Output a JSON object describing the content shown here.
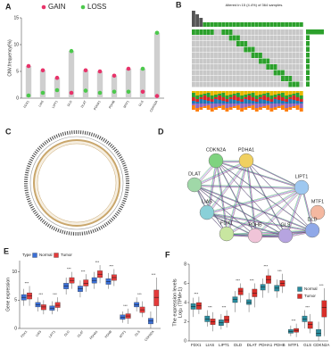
{
  "panel_labels": [
    "A",
    "B",
    "C",
    "D",
    "E",
    "F"
  ],
  "oncoplot": {
    "title": "Altered in 15 (4.4%) of 364 samples."
  },
  "network": {
    "nodes": [
      "CDKN2A",
      "PDHA1",
      "LIPT1",
      "MTF1",
      "DLD",
      "GLS",
      "PDHB",
      "FDX1",
      "LIAS",
      "DLAT"
    ]
  },
  "chart_data": [
    {
      "type": "dot_bar",
      "ylabel": "CNV.frequency(%)",
      "categories": [
        "FDX1",
        "LIAS",
        "LIPT1",
        "DLD",
        "DLAT",
        "PDHA1",
        "PDHB",
        "MTF1",
        "GLS",
        "CDKN2A"
      ],
      "series": [
        {
          "name": "GAIN",
          "color": "#e8336a",
          "values": [
            6.0,
            5.2,
            3.8,
            1.0,
            5.2,
            5.0,
            4.2,
            5.5,
            1.2,
            0.4
          ]
        },
        {
          "name": "LOSS",
          "color": "#4cc94c",
          "values": [
            0.5,
            1.0,
            1.5,
            8.8,
            1.4,
            1.0,
            1.2,
            1.2,
            5.5,
            12.2
          ]
        }
      ],
      "ylim": [
        0,
        15
      ],
      "yticks": [
        0,
        5,
        10,
        15
      ],
      "bar_color": "#cfcfcf",
      "legend": "top"
    },
    {
      "type": "box",
      "ylabel": "Gene expression",
      "legend_title": "Type",
      "legend": "top-left",
      "categories": [
        "FDX1",
        "LIAS",
        "LIPT1",
        "DLD",
        "DLAT",
        "PDHA1",
        "PDHB",
        "MTF1",
        "GLS",
        "CDKN2A"
      ],
      "annotations": [
        "***",
        "***",
        "***",
        "***",
        "***",
        "***",
        "***",
        "***",
        "***",
        "***"
      ],
      "series": [
        {
          "name": "Normal",
          "color": "#3b6fd6",
          "boxes": [
            [
              4,
              5,
              5.5,
              6,
              7
            ],
            [
              3,
              3.8,
              4.2,
              4.6,
              5.5
            ],
            [
              2.5,
              3.2,
              3.6,
              4,
              4.8
            ],
            [
              6,
              7,
              7.5,
              8,
              9
            ],
            [
              5.5,
              6.5,
              7,
              7.5,
              8.5
            ],
            [
              7,
              8,
              8.5,
              9,
              10
            ],
            [
              7,
              7.8,
              8.3,
              8.8,
              9.8
            ],
            [
              1,
              1.6,
              2,
              2.4,
              3
            ],
            [
              3,
              3.8,
              4.2,
              4.6,
              5.5
            ],
            [
              0,
              0.8,
              1.3,
              1.8,
              3
            ]
          ]
        },
        {
          "name": "Tumor",
          "color": "#e43b3b",
          "boxes": [
            [
              4,
              5.2,
              5.8,
              6.3,
              7.5
            ],
            [
              2.5,
              3.3,
              3.8,
              4.2,
              5
            ],
            [
              3,
              3.7,
              4.1,
              4.6,
              5.5
            ],
            [
              7,
              8,
              8.5,
              9,
              10
            ],
            [
              6.5,
              7.5,
              8,
              8.6,
              9.6
            ],
            [
              8,
              9,
              9.6,
              10.2,
              11.2
            ],
            [
              7.5,
              8.5,
              9,
              9.5,
              10.5
            ],
            [
              0.8,
              1.8,
              2.2,
              2.6,
              3.5
            ],
            [
              2,
              2.8,
              3.3,
              3.8,
              4.8
            ],
            [
              1,
              4,
              5.5,
              6.8,
              9
            ]
          ]
        }
      ],
      "ylim": [
        0,
        12
      ],
      "yticks": [
        0,
        5,
        10
      ]
    },
    {
      "type": "box",
      "ylabel": [
        "The expression levels",
        "Log₂ (TPM+1)"
      ],
      "legend": "right",
      "categories": [
        "FDX1",
        "LIAS",
        "LIPT1",
        "DLD",
        "DLAT",
        "PDHA1",
        "PDHB",
        "MTF1",
        "GLS",
        "CDKN2A"
      ],
      "annotations": [
        "***",
        "***",
        "***",
        "***",
        "***",
        "***",
        "***",
        "***",
        "***",
        "***"
      ],
      "series": [
        {
          "name": "Normal",
          "color": "#2a8c9e",
          "boxes": [
            [
              2.5,
              3.3,
              3.6,
              3.9,
              4.5
            ],
            [
              1.5,
              2.0,
              2.3,
              2.6,
              3.2
            ],
            [
              1.2,
              1.6,
              1.9,
              2.2,
              2.8
            ],
            [
              3.0,
              4.0,
              4.3,
              4.6,
              5.2
            ],
            [
              3.0,
              3.8,
              4.0,
              4.3,
              5.0
            ],
            [
              4.5,
              5.3,
              5.6,
              5.9,
              6.5
            ],
            [
              4.5,
              5.2,
              5.5,
              5.8,
              6.4
            ],
            [
              0.5,
              0.8,
              1.0,
              1.2,
              1.6
            ],
            [
              1.3,
              2.0,
              2.3,
              2.6,
              3.2
            ],
            [
              0,
              0.5,
              0.8,
              1.2,
              2.0
            ]
          ]
        },
        {
          "name": "Tumor",
          "color": "#d92f2a",
          "boxes": [
            [
              2.8,
              3.3,
              3.7,
              4.0,
              4.6
            ],
            [
              1.0,
              1.7,
              2.0,
              2.3,
              3.0
            ],
            [
              1.4,
              1.9,
              2.2,
              2.6,
              3.2
            ],
            [
              4.0,
              4.8,
              5.2,
              5.5,
              6.0
            ],
            [
              3.5,
              4.6,
              5.0,
              5.4,
              6.0
            ],
            [
              5.0,
              6.0,
              6.4,
              6.8,
              7.5
            ],
            [
              5.0,
              5.7,
              6.0,
              6.3,
              7.0
            ],
            [
              0.4,
              0.9,
              1.1,
              1.3,
              1.8
            ],
            [
              0.8,
              1.3,
              1.7,
              2.0,
              2.8
            ],
            [
              0.5,
              2.5,
              3.5,
              4.2,
              5.5
            ]
          ]
        }
      ],
      "ylim": [
        0,
        8
      ],
      "yticks": [
        0,
        2,
        4,
        6,
        8
      ]
    }
  ]
}
